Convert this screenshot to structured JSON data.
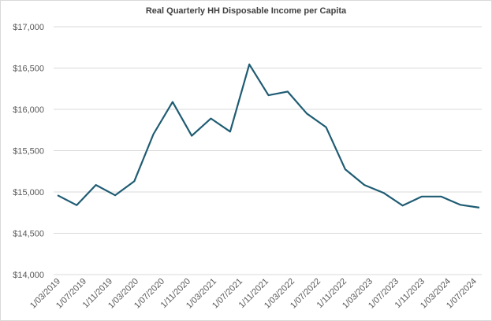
{
  "chart_data": {
    "type": "line",
    "title": "Real Quarterly HH Disposable  Income per Capita",
    "xlabel": "",
    "ylabel": "",
    "ylim": [
      14000,
      17000
    ],
    "yticks": [
      "$14,000",
      "$14,500",
      "$15,000",
      "$15,500",
      "$16,000",
      "$16,500",
      "$17,000"
    ],
    "ytick_values": [
      14000,
      14500,
      15000,
      15500,
      16000,
      16500,
      17000
    ],
    "xtick_labels": [
      "1/03/2019",
      "1/07/2019",
      "1/11/2019",
      "1/03/2020",
      "1/07/2020",
      "1/11/2020",
      "1/03/2021",
      "1/07/2021",
      "1/11/2021",
      "1/03/2022",
      "1/07/2022",
      "1/11/2022",
      "1/03/2023",
      "1/07/2023",
      "1/11/2023",
      "1/03/2024",
      "1/07/2024"
    ],
    "grid": true,
    "line_color": "#1f5c73",
    "series": [
      {
        "x": [
          "2019-03",
          "2019-06",
          "2019-09",
          "2019-12",
          "2020-03",
          "2020-06",
          "2020-09",
          "2020-12",
          "2021-03",
          "2021-06",
          "2021-09",
          "2021-12",
          "2022-03",
          "2022-06",
          "2022-09",
          "2022-12",
          "2023-03",
          "2023-06",
          "2023-09",
          "2023-12",
          "2024-03",
          "2024-06",
          "2024-09"
        ],
        "values": [
          14960,
          14840,
          15085,
          14960,
          15130,
          15700,
          16090,
          15680,
          15890,
          15730,
          16545,
          16170,
          16215,
          15950,
          15785,
          15275,
          15085,
          14990,
          14835,
          14945,
          14945,
          14845,
          14810
        ]
      }
    ]
  }
}
